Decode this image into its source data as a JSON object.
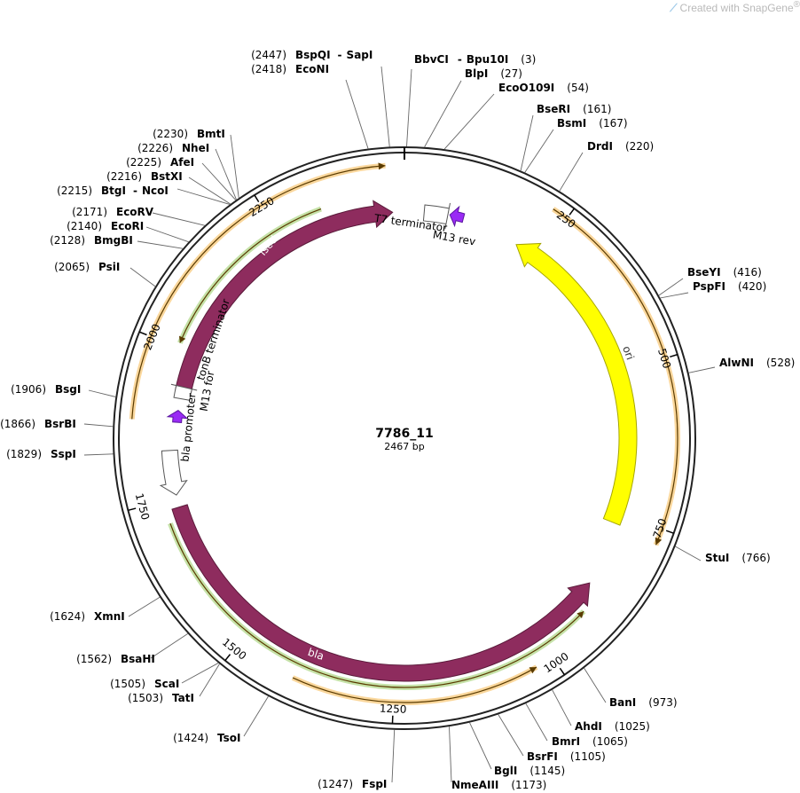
{
  "watermark": {
    "prefix": "Created with ",
    "brand": "SnapGene",
    "mark": "®"
  },
  "plasmid": {
    "name": "7786_11",
    "length_label": "2467 bp",
    "length": 2467
  },
  "ticks": [
    {
      "pos": 250,
      "label": "250"
    },
    {
      "pos": 500,
      "label": "500"
    },
    {
      "pos": 750,
      "label": "750"
    },
    {
      "pos": 1000,
      "label": "1000"
    },
    {
      "pos": 1250,
      "label": "1250"
    },
    {
      "pos": 1500,
      "label": "1500"
    },
    {
      "pos": 1750,
      "label": "1750"
    },
    {
      "pos": 2000,
      "label": "2000"
    },
    {
      "pos": 2250,
      "label": "2250"
    }
  ],
  "sites": [
    {
      "name": "BspQI",
      "extra": "SapI",
      "pos": 2447,
      "num": "(2447)"
    },
    {
      "name": "EcoNI",
      "pos": 2418,
      "num": "(2418)"
    },
    {
      "name": "BbvCI",
      "extra": "Bpu10I",
      "pos": 3,
      "num": "(3)"
    },
    {
      "name": "BlpI",
      "pos": 27,
      "num": "(27)"
    },
    {
      "name": "EcoO109I",
      "pos": 54,
      "num": "(54)"
    },
    {
      "name": "BseRI",
      "pos": 161,
      "num": "(161)"
    },
    {
      "name": "BsmI",
      "pos": 167,
      "num": "(167)"
    },
    {
      "name": "DrdI",
      "pos": 220,
      "num": "(220)"
    },
    {
      "name": "BseYI",
      "pos": 416,
      "num": "(416)"
    },
    {
      "name": "PspFI",
      "pos": 420,
      "num": "(420)"
    },
    {
      "name": "AlwNI",
      "pos": 528,
      "num": "(528)"
    },
    {
      "name": "StuI",
      "pos": 766,
      "num": "(766)"
    },
    {
      "name": "BanI",
      "pos": 973,
      "num": "(973)"
    },
    {
      "name": "AhdI",
      "pos": 1025,
      "num": "(1025)"
    },
    {
      "name": "BmrI",
      "pos": 1065,
      "num": "(1065)"
    },
    {
      "name": "BsrFI",
      "pos": 1105,
      "num": "(1105)"
    },
    {
      "name": "BglI",
      "pos": 1145,
      "num": "(1145)"
    },
    {
      "name": "NmeAIII",
      "pos": 1173,
      "num": "(1173)"
    },
    {
      "name": "FspI",
      "pos": 1247,
      "num": "(1247)"
    },
    {
      "name": "TsoI",
      "pos": 1424,
      "num": "(1424)"
    },
    {
      "name": "TatI",
      "pos": 1503,
      "num": "(1503)"
    },
    {
      "name": "ScaI",
      "pos": 1505,
      "num": "(1505)"
    },
    {
      "name": "BsaHI",
      "pos": 1562,
      "num": "(1562)"
    },
    {
      "name": "XmnI",
      "pos": 1624,
      "num": "(1624)"
    },
    {
      "name": "SspI",
      "pos": 1829,
      "num": "(1829)"
    },
    {
      "name": "BsrBI",
      "pos": 1866,
      "num": "(1866)"
    },
    {
      "name": "BsgI",
      "pos": 1906,
      "num": "(1906)"
    },
    {
      "name": "PsiI",
      "pos": 2065,
      "num": "(2065)"
    },
    {
      "name": "BmgBI",
      "pos": 2128,
      "num": "(2128)"
    },
    {
      "name": "EcoRI",
      "pos": 2140,
      "num": "(2140)"
    },
    {
      "name": "EcoRV",
      "pos": 2171,
      "num": "(2171)"
    },
    {
      "name": "BtgI",
      "extra": "NcoI",
      "pos": 2215,
      "num": "(2215)"
    },
    {
      "name": "BstXI",
      "pos": 2216,
      "num": "(2216)"
    },
    {
      "name": "AfeI",
      "pos": 2225,
      "num": "(2225)"
    },
    {
      "name": "NheI",
      "pos": 2226,
      "num": "(2226)"
    },
    {
      "name": "BmtI",
      "pos": 2230,
      "num": "(2230)"
    }
  ],
  "features": [
    {
      "name": "iscU",
      "label": "iscU",
      "color": "#8e2c5e"
    },
    {
      "name": "ori",
      "label": "ori",
      "color": "#ffff00"
    },
    {
      "name": "bla",
      "label": "bla",
      "color": "#8e2c5e"
    },
    {
      "name": "T7 terminator",
      "label": "T7 terminator",
      "color": "#ffffff"
    },
    {
      "name": "M13 rev",
      "label": "M13 rev",
      "color": "#9a2bf5"
    },
    {
      "name": "tonB terminator",
      "label": "tonB terminator",
      "color": "#ffffff"
    },
    {
      "name": "M13 for",
      "label": "M13 for",
      "color": "#9a2bf5"
    },
    {
      "name": "bla promoter",
      "label": "bla promoter",
      "color": "#ffffff"
    }
  ],
  "colors": {
    "backbone": "#222222",
    "orf_green": "#7fbf3f",
    "orf_orange": "#f5a623"
  }
}
